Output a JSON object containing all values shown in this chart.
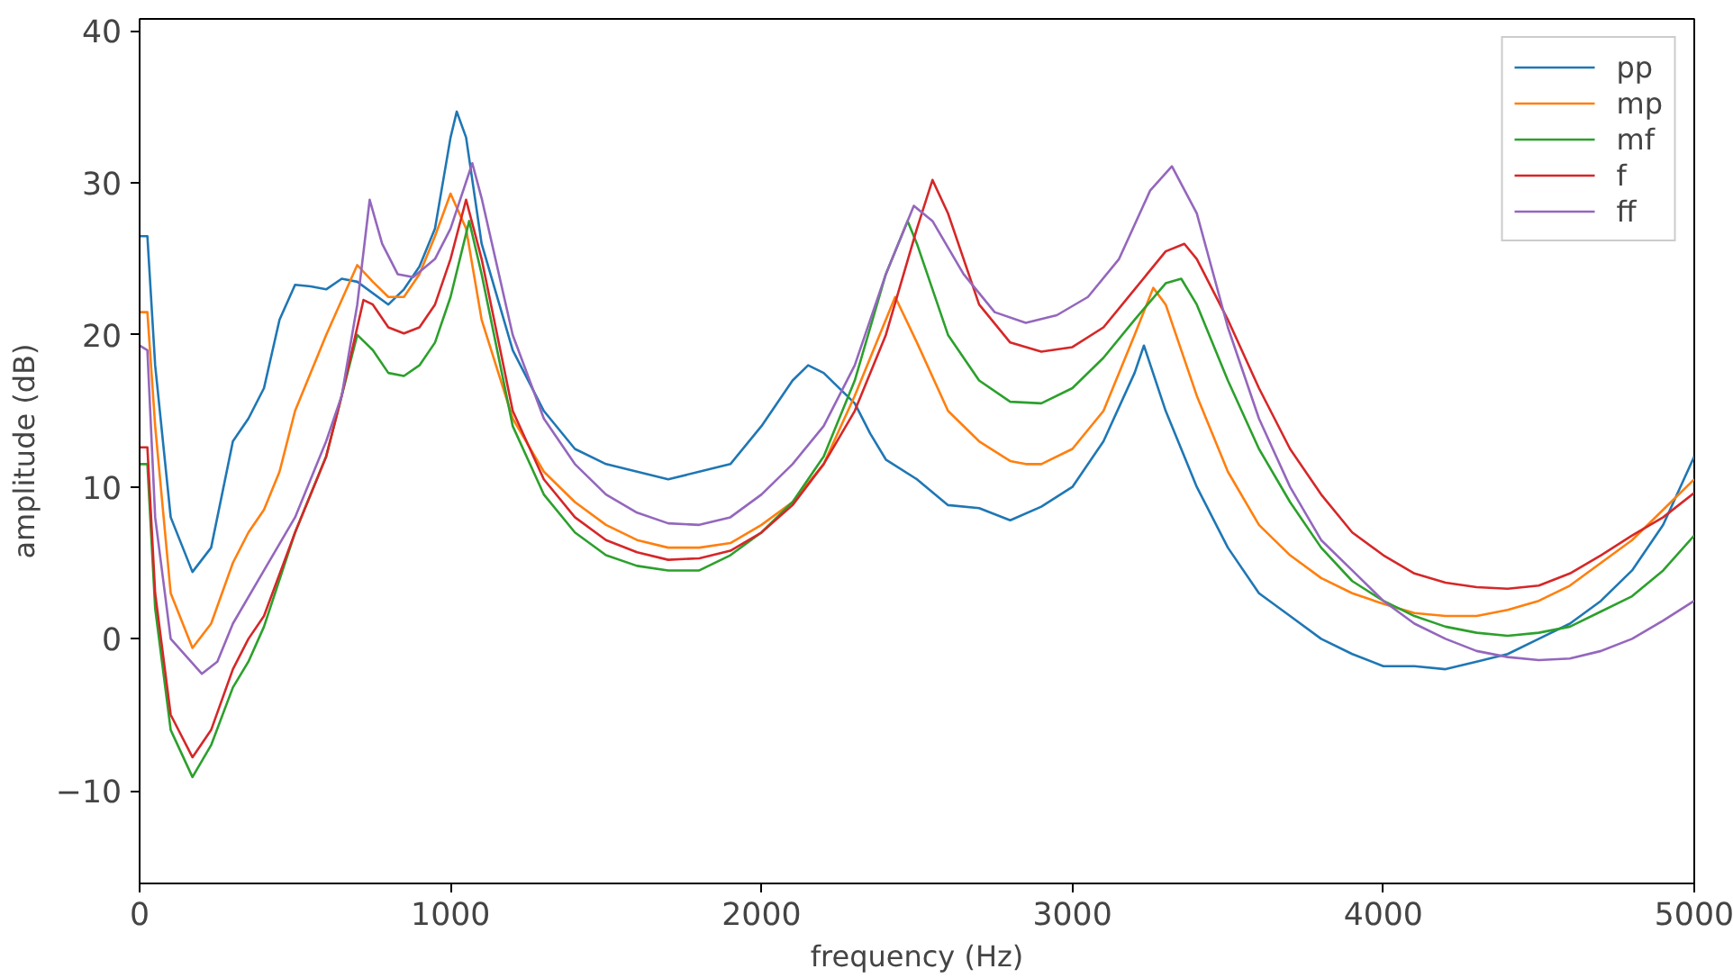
{
  "chart_data": {
    "type": "line",
    "xlabel": "frequency (Hz)",
    "ylabel": "amplitude (dB)",
    "xlim": [
      0,
      5000
    ],
    "ylim": [
      -16.1,
      40.8
    ],
    "xticks": [
      0,
      1000,
      2000,
      3000,
      4000,
      5000
    ],
    "yticks": [
      {
        "value": -10,
        "label": "−10"
      },
      0,
      10,
      20,
      30,
      40
    ],
    "grid": false,
    "legend": "top right",
    "line_style": "solid",
    "marker": "none",
    "series": [
      {
        "name": "pp",
        "color": "#1f77b4",
        "x": [
          0,
          25,
          50,
          100,
          170,
          230,
          300,
          350,
          400,
          450,
          500,
          550,
          600,
          650,
          700,
          800,
          850,
          900,
          950,
          1000,
          1020,
          1050,
          1100,
          1200,
          1300,
          1400,
          1500,
          1600,
          1700,
          1800,
          1900,
          2000,
          2100,
          2150,
          2200,
          2300,
          2350,
          2400,
          2500,
          2600,
          2700,
          2800,
          2900,
          3000,
          3100,
          3200,
          3230,
          3300,
          3400,
          3500,
          3600,
          3700,
          3800,
          3900,
          4000,
          4100,
          4200,
          4300,
          4400,
          4500,
          4600,
          4700,
          4800,
          4900,
          5000
        ],
        "values": [
          26.5,
          26.5,
          18,
          8,
          4.4,
          6,
          13,
          14.5,
          16.5,
          21,
          23.3,
          23.2,
          23,
          23.7,
          23.5,
          22,
          23,
          24.5,
          27,
          33,
          34.7,
          33,
          26,
          19,
          15,
          12.5,
          11.5,
          11,
          10.5,
          11,
          11.5,
          14,
          17,
          18,
          17.5,
          15.5,
          13.5,
          11.8,
          10.5,
          8.8,
          8.6,
          7.8,
          8.7,
          10,
          13,
          17.5,
          19.3,
          15,
          10,
          6,
          3,
          1.5,
          0,
          -1,
          -1.8,
          -1.8,
          -2,
          -1.5,
          -1,
          0,
          1,
          2.5,
          4.5,
          7.5,
          12
        ]
      },
      {
        "name": "mp",
        "color": "#ff7f0e",
        "x": [
          0,
          25,
          50,
          100,
          170,
          230,
          300,
          350,
          400,
          450,
          500,
          600,
          700,
          750,
          800,
          850,
          900,
          950,
          1000,
          1050,
          1100,
          1200,
          1300,
          1400,
          1500,
          1600,
          1700,
          1800,
          1900,
          2000,
          2100,
          2200,
          2300,
          2400,
          2430,
          2500,
          2600,
          2700,
          2800,
          2850,
          2900,
          3000,
          3100,
          3200,
          3260,
          3300,
          3400,
          3500,
          3600,
          3700,
          3800,
          3900,
          4000,
          4100,
          4200,
          4300,
          4400,
          4500,
          4600,
          4700,
          4800,
          4900,
          5000
        ],
        "values": [
          21.5,
          21.5,
          14,
          3,
          -0.6,
          1,
          5,
          7,
          8.5,
          11,
          15,
          20,
          24.6,
          23.5,
          22.5,
          22.5,
          24,
          26.5,
          29.3,
          27,
          21,
          14.5,
          11,
          9,
          7.5,
          6.5,
          6,
          6,
          6.3,
          7.5,
          9,
          11.5,
          16,
          21,
          22.5,
          19.5,
          15,
          13,
          11.7,
          11.5,
          11.5,
          12.5,
          15,
          20,
          23.1,
          22,
          16,
          11,
          7.5,
          5.5,
          4,
          3,
          2.3,
          1.7,
          1.5,
          1.5,
          1.9,
          2.5,
          3.5,
          5,
          6.5,
          8.5,
          10.5
        ]
      },
      {
        "name": "mf",
        "color": "#2ca02c",
        "x": [
          0,
          25,
          50,
          100,
          170,
          230,
          300,
          350,
          400,
          500,
          600,
          650,
          700,
          750,
          800,
          850,
          900,
          950,
          1000,
          1060,
          1100,
          1200,
          1300,
          1400,
          1500,
          1600,
          1700,
          1800,
          1900,
          2000,
          2100,
          2200,
          2300,
          2400,
          2470,
          2500,
          2600,
          2700,
          2800,
          2900,
          3000,
          3100,
          3200,
          3300,
          3350,
          3400,
          3500,
          3600,
          3700,
          3800,
          3900,
          4000,
          4100,
          4200,
          4300,
          4400,
          4500,
          4600,
          4700,
          4800,
          4900,
          5000
        ],
        "values": [
          11.5,
          11.5,
          2,
          -6,
          -9.1,
          -7,
          -3.2,
          -1.5,
          0.8,
          7,
          12,
          16,
          20,
          19,
          17.5,
          17.3,
          18,
          19.5,
          22.5,
          27.5,
          24,
          14,
          9.5,
          7,
          5.5,
          4.8,
          4.5,
          4.5,
          5.5,
          7,
          9,
          12,
          17,
          24,
          27.5,
          26,
          20,
          17,
          15.6,
          15.5,
          16.5,
          18.5,
          21,
          23.4,
          23.7,
          22,
          17,
          12.5,
          9,
          6,
          3.8,
          2.5,
          1.5,
          0.8,
          0.4,
          0.2,
          0.4,
          0.8,
          1.8,
          2.8,
          4.5,
          6.8
        ]
      },
      {
        "name": "f",
        "color": "#d62728",
        "x": [
          0,
          25,
          50,
          100,
          170,
          230,
          300,
          350,
          400,
          500,
          600,
          650,
          720,
          750,
          800,
          850,
          900,
          950,
          1000,
          1050,
          1100,
          1200,
          1300,
          1400,
          1500,
          1600,
          1700,
          1800,
          1900,
          2000,
          2100,
          2200,
          2300,
          2400,
          2500,
          2550,
          2600,
          2700,
          2800,
          2900,
          3000,
          3100,
          3200,
          3300,
          3360,
          3400,
          3500,
          3600,
          3700,
          3800,
          3900,
          4000,
          4100,
          4200,
          4300,
          4400,
          4500,
          4600,
          4700,
          4800,
          4900,
          5000
        ],
        "values": [
          12.6,
          12.6,
          3,
          -5,
          -7.8,
          -6,
          -2,
          0,
          1.5,
          7,
          12,
          16,
          22.3,
          22,
          20.5,
          20.1,
          20.5,
          22,
          25,
          28.9,
          25,
          15,
          10.5,
          8,
          6.5,
          5.7,
          5.2,
          5.3,
          5.8,
          7,
          8.8,
          11.5,
          15,
          20,
          27,
          30.2,
          28,
          22,
          19.5,
          18.9,
          19.2,
          20.5,
          23,
          25.5,
          26,
          25,
          21,
          16.5,
          12.5,
          9.5,
          7,
          5.5,
          4.3,
          3.7,
          3.4,
          3.3,
          3.5,
          4.3,
          5.5,
          6.8,
          8,
          9.6
        ]
      },
      {
        "name": "ff",
        "color": "#9467bd",
        "x": [
          0,
          25,
          50,
          100,
          200,
          250,
          300,
          400,
          500,
          600,
          650,
          700,
          740,
          780,
          830,
          880,
          950,
          1000,
          1070,
          1100,
          1200,
          1300,
          1400,
          1500,
          1600,
          1700,
          1800,
          1900,
          2000,
          2100,
          2200,
          2300,
          2400,
          2490,
          2550,
          2650,
          2750,
          2850,
          2950,
          3050,
          3150,
          3250,
          3320,
          3400,
          3500,
          3600,
          3700,
          3800,
          3900,
          4000,
          4100,
          4200,
          4300,
          4400,
          4500,
          4600,
          4700,
          4800,
          4900,
          5000
        ],
        "values": [
          19.3,
          19,
          8,
          0,
          -2.3,
          -1.5,
          1,
          4.5,
          8,
          13,
          16,
          22,
          28.9,
          26,
          24,
          23.8,
          25,
          27,
          31.3,
          29,
          20,
          14.5,
          11.5,
          9.5,
          8.3,
          7.6,
          7.5,
          8,
          9.5,
          11.5,
          14,
          18,
          24,
          28.5,
          27.5,
          24,
          21.5,
          20.8,
          21.3,
          22.5,
          25,
          29.5,
          31.1,
          28,
          20.5,
          14.5,
          10,
          6.5,
          4.5,
          2.5,
          1,
          0,
          -0.8,
          -1.2,
          -1.4,
          -1.3,
          -0.8,
          0,
          1.2,
          2.5
        ]
      }
    ]
  }
}
